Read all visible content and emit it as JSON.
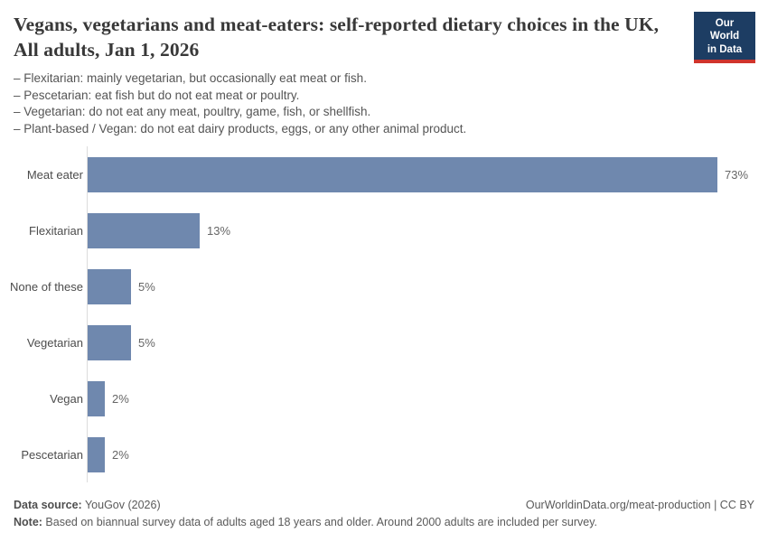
{
  "logo": {
    "line1": "Our World",
    "line2": "in Data",
    "bg_color": "#1d3d63",
    "accent_color": "#d0342c"
  },
  "header": {
    "title": "Vegans, vegetarians and meat-eaters: self-reported dietary choices in the UK, All adults, Jan 1, 2026",
    "subtitle_lines": [
      "– Flexitarian: mainly vegetarian, but occasionally eat meat or fish.",
      "– Pescetarian: eat fish but do not eat meat or poultry.",
      "– Vegetarian: do not eat any meat, poultry, game, fish, or shellfish.",
      "– Plant-based / Vegan: do not eat dairy products, eggs, or any other animal product."
    ]
  },
  "chart_data": {
    "type": "bar",
    "orientation": "horizontal",
    "title": "Vegans, vegetarians and meat-eaters: self-reported dietary choices in the UK, All adults, Jan 1, 2026",
    "categories": [
      "Meat eater",
      "Flexitarian",
      "None of these",
      "Vegetarian",
      "Vegan",
      "Pescetarian"
    ],
    "values": [
      73,
      13,
      5,
      5,
      2,
      2
    ],
    "value_labels": [
      "73%",
      "13%",
      "5%",
      "5%",
      "2%",
      "2%"
    ],
    "unit": "%",
    "xlim": [
      0,
      77
    ],
    "grid": false,
    "bar_color": "#6f88ae",
    "legend": "none"
  },
  "footer": {
    "data_source_label": "Data source:",
    "data_source_value": " YouGov (2026)",
    "attribution": "OurWorldinData.org/meat-production | CC BY",
    "note_label": "Note:",
    "note_value": " Based on biannual survey data of adults aged 18 years and older. Around 2000 adults are included per survey."
  }
}
